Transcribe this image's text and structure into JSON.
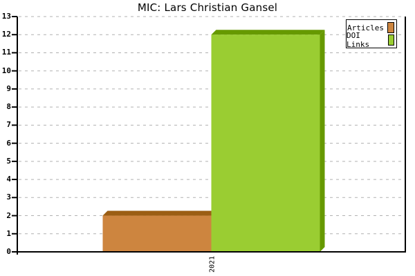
{
  "chart_data": {
    "type": "bar",
    "title": "MIC: Lars Christian Gansel",
    "categories": [
      "2021"
    ],
    "series": [
      {
        "name": "Articles",
        "values": [
          2
        ],
        "color": "#CD853F",
        "shade_color": "#9B5E14"
      },
      {
        "name": "DOI Links",
        "values": [
          12
        ],
        "color": "#9ACD32",
        "shade_color": "#669900"
      }
    ],
    "ylim": [
      0,
      13
    ],
    "yticks": [
      0,
      1,
      2,
      3,
      4,
      5,
      6,
      7,
      8,
      9,
      10,
      11,
      12,
      13
    ],
    "xlabel": "",
    "ylabel": "",
    "grid": "horizontal-dashed",
    "grid_color": "#b0b0b0",
    "axis_color": "#000000",
    "background_color": "#ffffff",
    "style": "3d-bars",
    "legend_position": "top-right"
  }
}
